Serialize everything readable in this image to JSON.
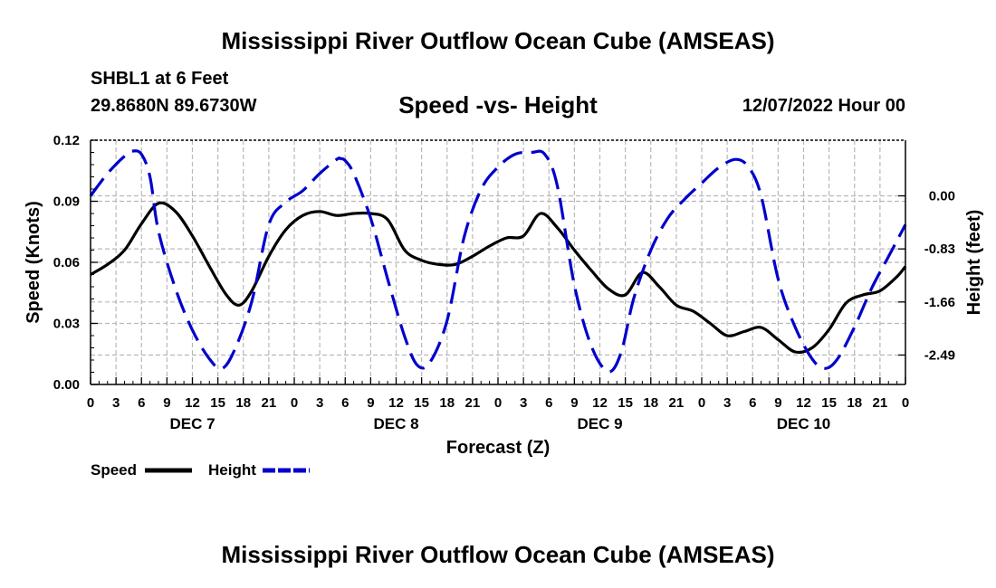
{
  "header": {
    "title": "Mississippi River Outflow Ocean Cube (AMSEAS)",
    "station": "SHBL1 at 6 Feet",
    "coords": "29.8680N  89.6730W",
    "subtitle": "Speed -vs- Height",
    "datestamp": "12/07/2022 Hour 00"
  },
  "footer": {
    "title": "Mississippi River Outflow Ocean Cube (AMSEAS)"
  },
  "chart_data": {
    "type": "line",
    "xlabel": "Forecast (Z)",
    "ylabel_left": "Speed (Knots)",
    "ylabel_right": "Height (feet)",
    "x_range": [
      0,
      96
    ],
    "x_ticks": [
      0,
      3,
      6,
      9,
      12,
      15,
      18,
      21,
      24,
      27,
      30,
      33,
      36,
      39,
      42,
      45,
      48,
      51,
      54,
      57,
      60,
      63,
      66,
      69,
      72,
      75,
      78,
      81,
      84,
      87,
      90,
      93,
      96
    ],
    "x_tick_labels": [
      "0",
      "3",
      "6",
      "9",
      "12",
      "15",
      "18",
      "21",
      "0",
      "3",
      "6",
      "9",
      "12",
      "15",
      "18",
      "21",
      "0",
      "3",
      "6",
      "9",
      "12",
      "15",
      "18",
      "21",
      "0",
      "3",
      "6",
      "9",
      "12",
      "15",
      "18",
      "21",
      "0"
    ],
    "day_labels": [
      {
        "label": "DEC 7",
        "x": 12
      },
      {
        "label": "DEC 8",
        "x": 36
      },
      {
        "label": "DEC 9",
        "x": 60
      },
      {
        "label": "DEC 10",
        "x": 84
      }
    ],
    "y_left_range": [
      0,
      0.12
    ],
    "y_left_ticks": [
      0.0,
      0.03,
      0.06,
      0.09,
      0.12
    ],
    "y_left_tick_labels": [
      "0.00",
      "0.03",
      "0.06",
      "0.09",
      "0.12"
    ],
    "y_right_range": [
      -2.95,
      0.87
    ],
    "y_right_ticks": [
      0.0,
      -0.83,
      -1.66,
      -2.49
    ],
    "y_right_tick_labels": [
      "0.00",
      "-0.83",
      "-1.66",
      "-2.49"
    ],
    "grid": true,
    "series": [
      {
        "name": "Speed",
        "axis": "left",
        "color": "#000000",
        "dash": "solid",
        "x": [
          0,
          2,
          4,
          6,
          8,
          10,
          12,
          14,
          16,
          17.5,
          19,
          21,
          23,
          25,
          27,
          29,
          31,
          33,
          35,
          37,
          39,
          41,
          43,
          45,
          47,
          49,
          51,
          53,
          55,
          57,
          59,
          61,
          63,
          65,
          67,
          69,
          71,
          73,
          75,
          77,
          79,
          81,
          83,
          85,
          87,
          89,
          91,
          93,
          95,
          96
        ],
        "values": [
          0.054,
          0.059,
          0.066,
          0.079,
          0.089,
          0.085,
          0.073,
          0.058,
          0.044,
          0.039,
          0.046,
          0.063,
          0.076,
          0.083,
          0.085,
          0.083,
          0.084,
          0.084,
          0.081,
          0.066,
          0.061,
          0.059,
          0.059,
          0.063,
          0.068,
          0.072,
          0.073,
          0.084,
          0.077,
          0.066,
          0.056,
          0.047,
          0.044,
          0.055,
          0.048,
          0.039,
          0.036,
          0.03,
          0.024,
          0.026,
          0.028,
          0.022,
          0.016,
          0.018,
          0.027,
          0.04,
          0.044,
          0.046,
          0.053,
          0.058
        ]
      },
      {
        "name": "Height",
        "axis": "right",
        "color": "#0000cc",
        "dash": "dashed",
        "x": [
          0,
          2,
          4,
          5,
          6,
          7,
          8,
          10,
          12,
          14,
          15.5,
          17,
          19,
          21,
          23,
          25,
          27,
          29,
          29.5,
          30,
          31,
          33,
          35,
          37,
          38.5,
          40,
          42,
          44,
          46,
          48,
          50,
          52,
          53.5,
          55,
          57,
          59,
          61,
          62.5,
          64,
          66,
          68,
          70,
          72,
          74,
          76,
          77.5,
          79,
          81,
          83,
          85,
          86.5,
          88,
          90,
          92,
          94,
          96
        ],
        "values": [
          0.0,
          0.35,
          0.62,
          0.7,
          0.65,
          0.3,
          -0.55,
          -1.45,
          -2.1,
          -2.55,
          -2.7,
          -2.4,
          -1.65,
          -0.45,
          -0.1,
          0.08,
          0.35,
          0.57,
          0.58,
          0.55,
          0.35,
          -0.35,
          -1.3,
          -2.2,
          -2.65,
          -2.6,
          -1.95,
          -0.65,
          0.1,
          0.45,
          0.65,
          0.68,
          0.65,
          0.15,
          -1.4,
          -2.35,
          -2.75,
          -2.45,
          -1.6,
          -0.85,
          -0.35,
          -0.05,
          0.2,
          0.44,
          0.57,
          0.45,
          0.0,
          -1.3,
          -2.05,
          -2.55,
          -2.7,
          -2.55,
          -2.05,
          -1.45,
          -0.95,
          -0.45
        ]
      }
    ],
    "legend": {
      "position": "bottom-left",
      "entries": [
        {
          "label": "Speed",
          "color": "#000000",
          "dash": "solid"
        },
        {
          "label": "Height",
          "color": "#0000cc",
          "dash": "dashed"
        }
      ]
    }
  }
}
